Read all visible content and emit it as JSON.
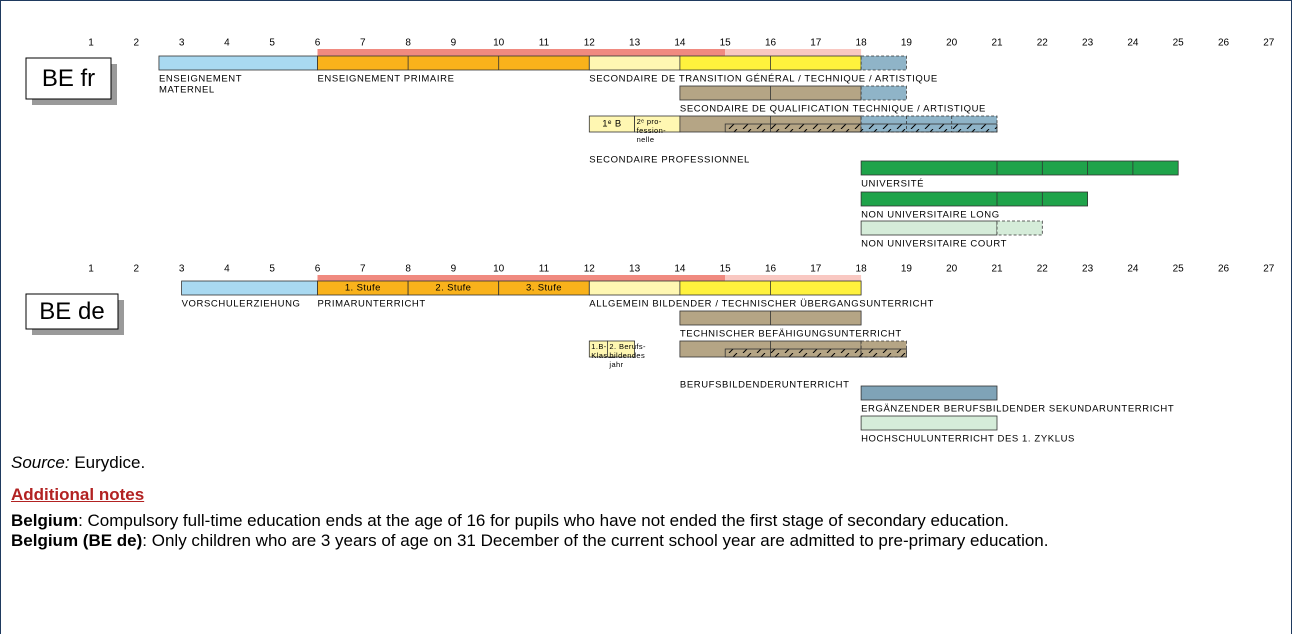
{
  "ages": [
    1,
    2,
    3,
    4,
    5,
    6,
    7,
    8,
    9,
    10,
    11,
    12,
    13,
    14,
    15,
    16,
    17,
    18,
    19,
    20,
    21,
    22,
    23,
    24,
    25,
    26,
    27
  ],
  "compulsory": {
    "full_time": [
      6,
      15
    ],
    "full_time_color": "#f08a80",
    "part_time": [
      15,
      18
    ],
    "part_time_color": "#f9c8c2"
  },
  "sections": [
    {
      "label": "BE fr",
      "rows": [
        {
          "bars": [
            {
              "start": 2.5,
              "end": 6,
              "color": "#a9d9f1",
              "label": [
                "ENSEIGNEMENT",
                "MATERNEL"
              ]
            },
            {
              "start": 6,
              "end": 12,
              "color": "#f9b21b",
              "dividers": [
                8,
                10
              ],
              "label": [
                "ENSEIGNEMENT PRIMAIRE"
              ]
            },
            {
              "start": 12,
              "end": 14,
              "color": "#fff7b2",
              "label": [
                "SECONDAIRE DE TRANSITION GÉNÉRAL / TECHNIQUE / ARTISTIQUE"
              ]
            },
            {
              "start": 14,
              "end": 18,
              "color": "#fff23d",
              "dividers": [
                16
              ]
            },
            {
              "start": 18,
              "end": 19,
              "color": "#8fb4c8",
              "dashed": true
            }
          ]
        },
        {
          "bars": [
            {
              "start": 14,
              "end": 18,
              "color": "#b5a585",
              "dividers": [
                16
              ],
              "label": [
                "SECONDAIRE DE QUALIFICATION TECHNIQUE / ARTISTIQUE"
              ]
            },
            {
              "start": 18,
              "end": 19,
              "color": "#8fb4c8",
              "dashed": true
            }
          ]
        },
        {
          "hatch": [
            15,
            21
          ],
          "bars": [
            {
              "start": 12,
              "end": 13,
              "color": "#fff7b2",
              "text": [
                "1ᵉ B"
              ],
              "label": [
                "SECONDAIRE PROFESSIONNEL"
              ]
            },
            {
              "start": 13,
              "end": 14,
              "color": "#fff7b2",
              "text": [
                "2ᵉ pro-",
                "fession-",
                "nelle"
              ]
            },
            {
              "start": 14,
              "end": 18,
              "color": "#b5a585",
              "dividers": [
                16
              ]
            },
            {
              "start": 18,
              "end": 21,
              "color": "#8fb4c8",
              "dashed": true,
              "dividers": [
                19,
                20
              ]
            }
          ]
        },
        {
          "bars": [
            {
              "start": 18,
              "end": 25,
              "color": "#1fa34a",
              "dividers": [
                21,
                22,
                23,
                24
              ],
              "label": [
                "UNIVERSITÉ"
              ]
            }
          ]
        },
        {
          "bars": [
            {
              "start": 18,
              "end": 23,
              "color": "#1fa34a",
              "dividers": [
                21,
                22
              ],
              "label": [
                "NON UNIVERSITAIRE LONG"
              ]
            }
          ]
        },
        {
          "bars": [
            {
              "start": 18,
              "end": 21,
              "color": "#d5ecd9",
              "label": [
                "NON UNIVERSITAIRE COURT"
              ]
            },
            {
              "start": 21,
              "end": 22,
              "color": "#d5ecd9",
              "dashed": true
            }
          ]
        }
      ]
    },
    {
      "label": "BE de",
      "rows": [
        {
          "bars": [
            {
              "start": 3,
              "end": 6,
              "color": "#a9d9f1",
              "label": [
                "VORSCHULERZIEHUNG"
              ]
            },
            {
              "start": 6,
              "end": 8,
              "color": "#f9b21b",
              "text": [
                "1. Stufe"
              ],
              "label": [
                "PRIMARUNTERRICHT"
              ]
            },
            {
              "start": 8,
              "end": 10,
              "color": "#f9b21b",
              "text": [
                "2. Stufe"
              ]
            },
            {
              "start": 10,
              "end": 12,
              "color": "#f9b21b",
              "text": [
                "3. Stufe"
              ]
            },
            {
              "start": 12,
              "end": 14,
              "color": "#fff7b2",
              "label": [
                "ALLGEMEIN BILDENDER / TECHNISCHER ÜBERGANGSUNTERRICHT"
              ]
            },
            {
              "start": 14,
              "end": 18,
              "color": "#fff23d",
              "dividers": [
                16
              ]
            }
          ]
        },
        {
          "bars": [
            {
              "start": 14,
              "end": 18,
              "color": "#b5a585",
              "dividers": [
                16
              ],
              "label": [
                "TECHNISCHER BEFÄHIGUNGSUNTERRICHT"
              ]
            }
          ]
        },
        {
          "hatch": [
            15,
            19
          ],
          "bars": [
            {
              "start": 12,
              "end": 12.4,
              "color": "#fff7b2",
              "text": [
                "1.B-",
                "Klasse"
              ]
            },
            {
              "start": 12.4,
              "end": 13,
              "color": "#fff7b2",
              "text": [
                "2. Berufs-",
                "bildendes",
                "jahr"
              ]
            },
            {
              "start": 14,
              "end": 18,
              "color": "#b5a585",
              "dividers": [
                16
              ],
              "label": [
                "BERUFSBILDENDERUNTERRICHT"
              ]
            },
            {
              "start": 18,
              "end": 19,
              "color": "#b5a585",
              "dashed": true
            }
          ]
        },
        {
          "bars": [
            {
              "start": 18,
              "end": 21,
              "color": "#7fa3b7",
              "label": [
                "ERGÄNZENDER BERUFSBILDENDER SEKUNDARUNTERRICHT"
              ]
            }
          ]
        },
        {
          "bars": [
            {
              "start": 18,
              "end": 21,
              "color": "#d5ecd9",
              "label": [
                "HOCHSCHULUNTERRICHT DES 1. ZYKLUS"
              ]
            }
          ]
        }
      ]
    }
  ],
  "source": {
    "label": "Source:",
    "text": " Eurydice."
  },
  "notes_title": "Additional notes",
  "notes": [
    {
      "bold": "Belgium",
      "text": ": Compulsory full-time education ends at the age of 16 for pupils who have not ended the first stage of secondary education."
    },
    {
      "bold": "Belgium (BE de)",
      "text": ": Only children who are 3 years of age on 31 December of the current school year are admitted to pre-primary education."
    }
  ]
}
